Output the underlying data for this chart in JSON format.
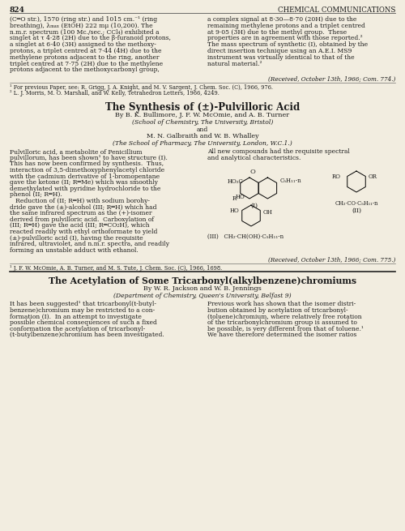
{
  "page_number": "824",
  "journal_name": "Chemical Communications",
  "background_color": "#f2ede0",
  "text_color": "#1a1a1a",
  "top_left_text": [
    "(C═O str.), 1570 (ring str.) and 1015 cm.⁻¹ (ring",
    "breathing), λₘₐₓ (EtOH) 222 mμ (10,200). The",
    "n.m.r. spectrum (100 Mc./sec.; CCl₄) exhibited a",
    "singlet at τ 4·28 (2H) due to the β-furanoid protons,",
    "a singlet at 6·40 (3H) assigned to the methoxy-",
    "protons, a triplet centred at 7·44 (4H) due to the",
    "methylene protons adjacent to the ring, another",
    "triplet centred at 7·75 (2H) due to the methylene",
    "protons adjacent to the methoxycarbonyl group,"
  ],
  "top_right_text": [
    "a complex signal at 8·30—8·70 (20H) due to the",
    "remaining methylene protons and a triplet centred",
    "at 9·05 (3H) due to the methyl group.  These",
    "properties are in agreement with those reported.²",
    "The mass spectrum of synthetic (I), obtained by the",
    "direct insertion technique using an A.E.I. MS9",
    "instrument was virtually identical to that of the",
    "natural material.²"
  ],
  "received_1": "(Received, October 13th, 1966; Com. 774.)",
  "footnotes_1": [
    "¹ For previous Paper, see: R. Grigg, J. A. Knight, and M. V. Sargent, J. Chem. Soc. (C), 1966, 976.",
    "² L. J. Morris, M. O. Marshall, and W. Kelly, Tetrahedron Letters, 1966, 4249."
  ],
  "title_1": "The Synthesis of (±)-Pulvilloric Acid",
  "authors_1": "By B. K. Bullimore, J. F. W. McOmie, and A. B. Turner",
  "affil_1": "(School of Chemistry, The University, Bristol)",
  "and_text": "and",
  "authors_1b": "M. N. Galbraith and W. B. Whalley",
  "affil_1b": "(The School of Pharmacy, The University, London, W.C.1.)",
  "left_body_1": [
    "Pulvilloric acid, a metabolite of Penicillium",
    "pulvillorum, has been shown¹ to have structure (I).",
    "This has now been confirmed by synthesis.  Thus,",
    "interaction of 3,5-dimethoxyphenylacetyl chloride",
    "with the cadmium derivative of 1-bromopentane",
    "gave the ketone (II; R═Me) which was smoothly",
    "demethylated with pyridine hydrochloride to the",
    "phenol (II; R═H).",
    "   Reduction of (II; R═H) with sodium borohy-",
    "dride gave the (±)-alcohol (III; R═H) which had",
    "the same infrared spectrum as the (+)-isomer",
    "derived from pulvilloric acid.  Carboxylation of",
    "(III; R═H) gave the acid (III; R═CO₂H), which",
    "reacted readily with ethyl orthoformate to yield",
    "(±)-pulvilloric acid (I), having the requisite",
    "infrared, ultraviolet, and n.m.r. spectra, and readily",
    "forming an unstable adduct with ethanol."
  ],
  "right_body_1": [
    "All new compounds had the requisite spectral",
    "and analytical characteristics."
  ],
  "received_2": "(Received, October 13th, 1966; Com. 775.)",
  "footnote_2": "¹ J. F. W. McOmie, A. B. Turner, and M. S. Tute, J. Chem. Soc. (C), 1966, 1698.",
  "title_2": "The Acetylation of Some Tricarbonyl(alkylbenzene)chromiums",
  "authors_2": "By W. R. Jackson and W. B. Jennings",
  "affil_2": "(Department of Chemistry, Queen's University, Belfast 9)",
  "left_body_2": [
    "It has been suggested¹ that tricarbonyl(t-butyl-",
    "benzene)chromium may be restricted to a con-",
    "formation (I).  In an attempt to investigate",
    "possible chemical consequences of such a fixed",
    "conformation the acetylation of tricarbonyl-",
    "(t-butylbenzene)chromium has been investigated."
  ],
  "right_body_2": [
    "Previous work has shown that the isomer distri-",
    "bution obtained by acetylation of tricarbonyl-",
    "(toluene)chromium, where relatively free rotation",
    "of the tricarbonylchromium group is assumed to",
    "be possible, is very different from that of toluene.¹",
    "We have therefore determined the isomer ratios"
  ]
}
